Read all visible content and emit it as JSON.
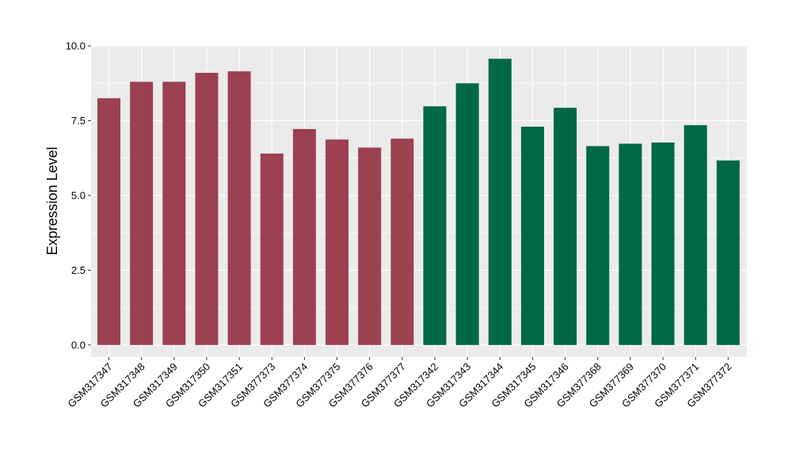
{
  "chart_data": {
    "type": "bar",
    "ylabel": "Expression Level",
    "ylim": [
      -0.4,
      10.0
    ],
    "y_ticks": [
      0.0,
      2.5,
      5.0,
      7.5,
      10.0
    ],
    "y_tick_labels": [
      "0.0",
      "2.5",
      "5.0",
      "7.5",
      "10.0"
    ],
    "grid": true,
    "categories": [
      "GSM317347",
      "GSM317348",
      "GSM317349",
      "GSM317350",
      "GSM317351",
      "GSM377373",
      "GSM377374",
      "GSM377375",
      "GSM377376",
      "GSM377377",
      "GSM317342",
      "GSM317343",
      "GSM317344",
      "GSM317345",
      "GSM317346",
      "GSM377368",
      "GSM377369",
      "GSM377370",
      "GSM377371",
      "GSM377372"
    ],
    "values": [
      8.25,
      8.8,
      8.8,
      9.1,
      9.15,
      6.4,
      7.22,
      6.87,
      6.6,
      6.9,
      7.98,
      8.75,
      9.57,
      7.3,
      7.93,
      6.65,
      6.73,
      6.77,
      7.35,
      6.17
    ],
    "group_colors": [
      "#9B4150",
      "#9B4150",
      "#9B4150",
      "#9B4150",
      "#9B4150",
      "#9B4150",
      "#9B4150",
      "#9B4150",
      "#9B4150",
      "#9B4150",
      "#006846",
      "#006846",
      "#006846",
      "#006846",
      "#006846",
      "#006846",
      "#006846",
      "#006846",
      "#006846",
      "#006846"
    ],
    "panel_background": "#EBEBEB",
    "gridline_color": "#FFFFFF"
  }
}
